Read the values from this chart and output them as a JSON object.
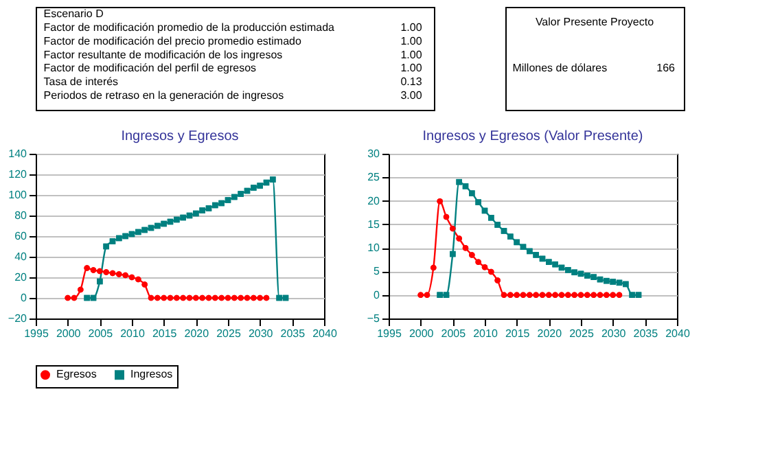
{
  "chart_data": [
    {
      "type": "other",
      "title": "Escenario D",
      "categories": [
        "Factor de modificación promedio de la producción estimada",
        "Factor de modificación del precio promedio estimado",
        "Factor resultante de modificación de los ingresos",
        "Factor de modificación del perfil de egresos",
        "Tasa de interés",
        "Periodos de retraso en la generación de ingresos"
      ],
      "value_labels": [
        "1.00",
        "1.00",
        "1.00",
        "1.00",
        "0.13",
        "3.00"
      ]
    },
    {
      "type": "other",
      "title": "Valor Presente Proyecto",
      "annotations": [
        "Millones de dólares",
        "166"
      ]
    },
    {
      "type": "line",
      "title": "Ingresos y Egresos",
      "xlim": [
        1995,
        2040
      ],
      "xticks": [
        1995,
        2000,
        2005,
        2010,
        2015,
        2020,
        2025,
        2030,
        2035,
        2040
      ],
      "ylim": [
        -20,
        140
      ],
      "yticks": [
        -20,
        0,
        20,
        40,
        60,
        80,
        100,
        120,
        140
      ],
      "grid": "y",
      "legend": "bottom",
      "series": [
        {
          "name": "Egresos",
          "color": "#ff0000",
          "marker": "circle",
          "x": [
            2000,
            2001,
            2002,
            2003,
            2004,
            2005,
            2006,
            2007,
            2008,
            2009,
            2010,
            2011,
            2012,
            2013,
            2014,
            2015,
            2016,
            2017,
            2018,
            2019,
            2020,
            2021,
            2022,
            2023,
            2024,
            2025,
            2026,
            2027,
            2028,
            2029,
            2030,
            2031
          ],
          "values": [
            0,
            0,
            8,
            29,
            27,
            26,
            25,
            24,
            23,
            22,
            20,
            18,
            13,
            0,
            0,
            0,
            0,
            0,
            0,
            0,
            0,
            0,
            0,
            0,
            0,
            0,
            0,
            0,
            0,
            0,
            0,
            0
          ]
        },
        {
          "name": "Ingresos",
          "color": "#008080",
          "marker": "square",
          "x": [
            2003,
            2004,
            2005,
            2006,
            2007,
            2008,
            2009,
            2010,
            2011,
            2012,
            2013,
            2014,
            2015,
            2016,
            2017,
            2018,
            2019,
            2020,
            2021,
            2022,
            2023,
            2024,
            2025,
            2026,
            2027,
            2028,
            2029,
            2030,
            2031,
            2032,
            2033,
            2034
          ],
          "values": [
            0,
            0,
            16,
            50,
            55,
            58,
            60,
            62,
            64,
            66,
            68,
            70,
            72,
            74,
            76,
            78,
            80,
            82,
            85,
            87,
            90,
            92,
            95,
            98,
            101,
            104,
            107,
            109,
            112,
            115,
            0,
            0
          ]
        }
      ]
    },
    {
      "type": "line",
      "title": "Ingresos y Egresos (Valor Presente)",
      "xlim": [
        1995,
        2040
      ],
      "xticks": [
        1995,
        2000,
        2005,
        2010,
        2015,
        2020,
        2025,
        2030,
        2035,
        2040
      ],
      "ylim": [
        -5,
        30
      ],
      "yticks": [
        -5,
        0,
        5,
        10,
        15,
        20,
        25,
        30
      ],
      "grid": "y",
      "legend": "bottom",
      "series": [
        {
          "name": "Egresos",
          "color": "#ff0000",
          "marker": "circle",
          "x": [
            2000,
            2001,
            2002,
            2003,
            2004,
            2005,
            2006,
            2007,
            2008,
            2009,
            2010,
            2011,
            2012,
            2013,
            2014,
            2015,
            2016,
            2017,
            2018,
            2019,
            2020,
            2021,
            2022,
            2023,
            2024,
            2025,
            2026,
            2027,
            2028,
            2029,
            2030,
            2031
          ],
          "values": [
            0,
            0,
            5.8,
            19.9,
            16.6,
            14.1,
            12,
            10,
            8.5,
            7,
            5.9,
            4.9,
            3.1,
            0,
            0,
            0,
            0,
            0,
            0,
            0,
            0,
            0,
            0,
            0,
            0,
            0,
            0,
            0,
            0,
            0,
            0,
            0
          ]
        },
        {
          "name": "Ingresos",
          "color": "#008080",
          "marker": "square",
          "x": [
            2003,
            2004,
            2005,
            2006,
            2007,
            2008,
            2009,
            2010,
            2011,
            2012,
            2013,
            2014,
            2015,
            2016,
            2017,
            2018,
            2019,
            2020,
            2021,
            2022,
            2023,
            2024,
            2025,
            2026,
            2027,
            2028,
            2029,
            2030,
            2031,
            2032,
            2033,
            2034
          ],
          "values": [
            0,
            0,
            8.7,
            24,
            23.1,
            21.6,
            19.7,
            17.9,
            16.4,
            14.9,
            13.6,
            12.4,
            11.2,
            10.2,
            9.3,
            8.5,
            7.7,
            7,
            6.5,
            5.8,
            5.3,
            4.8,
            4.5,
            4.1,
            3.8,
            3.3,
            3,
            2.8,
            2.6,
            2.3,
            0,
            0
          ]
        }
      ]
    }
  ]
}
